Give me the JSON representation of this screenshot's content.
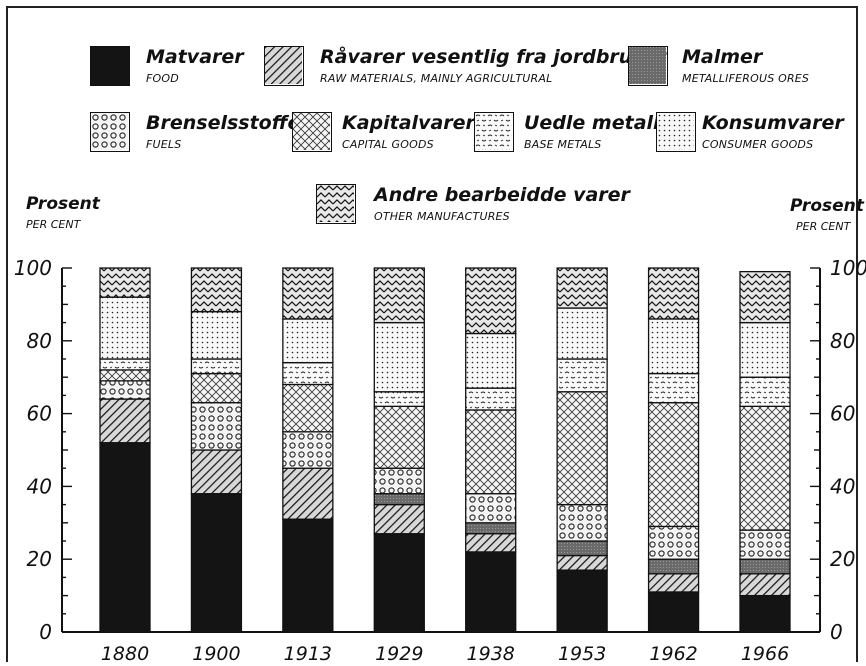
{
  "legend": [
    {
      "key": "food",
      "no": "Matvarer",
      "en": "FOOD",
      "pattern": "solid"
    },
    {
      "key": "raw",
      "no": "Råvarer vesentlig fra jordbruket",
      "en": "RAW MATERIALS, MAINLY AGRICULTURAL",
      "pattern": "hatch"
    },
    {
      "key": "ores",
      "no": "Malmer",
      "en": "METALLIFEROUS ORES",
      "pattern": "grey"
    },
    {
      "key": "fuels",
      "no": "Brenselsstoffer",
      "en": "FUELS",
      "pattern": "circles"
    },
    {
      "key": "capital",
      "no": "Kapitalvarer",
      "en": "CAPITAL GOODS",
      "pattern": "crosshatch"
    },
    {
      "key": "base",
      "no": "Uedle metaller",
      "en": "BASE METALS",
      "pattern": "squiggle"
    },
    {
      "key": "consumer",
      "no": "Konsumvarer",
      "en": "CONSUMER GOODS",
      "pattern": "dots"
    },
    {
      "key": "other",
      "no": "Andre bearbeidde varer",
      "en": "OTHER MANUFACTURES",
      "pattern": "zigzag"
    }
  ],
  "axis": {
    "left_title": "Prosent",
    "left_sub": "PER CENT",
    "right_title": "Prosent",
    "right_sub": "PER CENT"
  },
  "chart_data": {
    "type": "bar",
    "stacked": true,
    "categories": [
      "1880",
      "1900",
      "1913",
      "1929",
      "1938",
      "1953",
      "1962",
      "1966"
    ],
    "ylim": [
      0,
      100
    ],
    "yticks": [
      "0",
      "20",
      "40",
      "60",
      "80",
      "100"
    ],
    "series": [
      {
        "name": "Matvarer",
        "values": [
          52,
          38,
          31,
          27,
          22,
          17,
          11,
          10
        ]
      },
      {
        "name": "Råvarer vesentlig fra jordbruket",
        "values": [
          12,
          12,
          14,
          8,
          5,
          4,
          5,
          6
        ]
      },
      {
        "name": "Malmer",
        "values": [
          0,
          0,
          0,
          3,
          3,
          4,
          4,
          4
        ]
      },
      {
        "name": "Brenselsstoffer",
        "values": [
          5,
          13,
          10,
          7,
          8,
          10,
          9,
          8
        ]
      },
      {
        "name": "Kapitalvarer",
        "values": [
          3,
          8,
          13,
          17,
          23,
          31,
          34,
          34
        ]
      },
      {
        "name": "Uedle metaller",
        "values": [
          3,
          4,
          6,
          4,
          6,
          9,
          8,
          8
        ]
      },
      {
        "name": "Konsumvarer",
        "values": [
          17,
          13,
          12,
          19,
          15,
          14,
          15,
          15
        ]
      },
      {
        "name": "Andre bearbeidde varer",
        "values": [
          8,
          12,
          14,
          15,
          18,
          11,
          14,
          14
        ]
      }
    ]
  }
}
